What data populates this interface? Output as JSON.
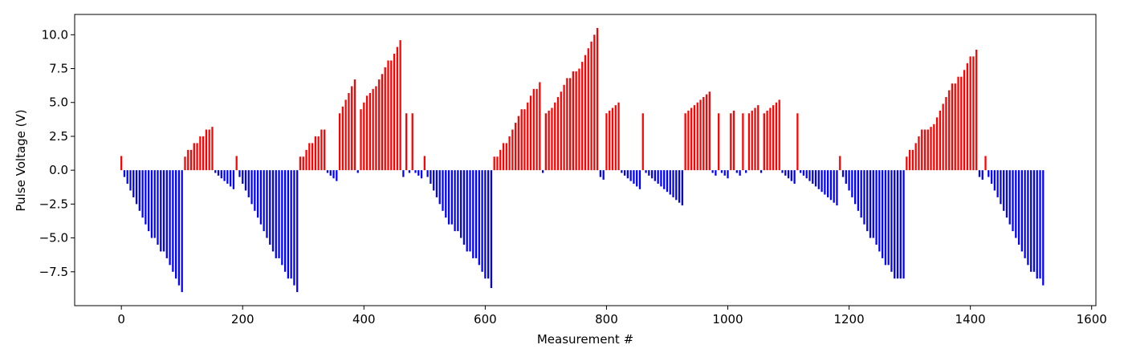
{
  "chart_data": {
    "type": "bar",
    "xlabel": "Measurement #",
    "ylabel": "Pulse Voltage (V)",
    "positive_color": "#ff0000",
    "negative_color": "#0000ff",
    "xlim": [
      -77,
      1607
    ],
    "ylim": [
      -10.0,
      11.5
    ],
    "xticks": [
      0,
      200,
      400,
      600,
      800,
      1000,
      1200,
      1400,
      1600
    ],
    "yticks": [
      {
        "value": -7.5,
        "label": "−7.5"
      },
      {
        "value": -5.0,
        "label": "−5.0"
      },
      {
        "value": -2.5,
        "label": "−2.5"
      },
      {
        "value": 0.0,
        "label": "0.0"
      },
      {
        "value": 2.5,
        "label": "2.5"
      },
      {
        "value": 5.0,
        "label": "5.0"
      },
      {
        "value": 7.5,
        "label": "7.5"
      },
      {
        "value": 10.0,
        "label": "10.0"
      }
    ],
    "x": [
      0,
      5,
      10,
      15,
      20,
      25,
      30,
      35,
      40,
      45,
      50,
      55,
      60,
      65,
      70,
      75,
      80,
      85,
      90,
      95,
      100,
      105,
      110,
      115,
      120,
      125,
      130,
      135,
      140,
      145,
      150,
      155,
      160,
      165,
      170,
      175,
      180,
      185,
      190,
      195,
      200,
      205,
      210,
      215,
      220,
      225,
      230,
      235,
      240,
      245,
      250,
      255,
      260,
      265,
      270,
      275,
      280,
      285,
      290,
      295,
      300,
      305,
      310,
      315,
      320,
      325,
      330,
      335,
      340,
      345,
      350,
      355,
      360,
      365,
      370,
      375,
      380,
      385,
      390,
      395,
      400,
      405,
      410,
      415,
      420,
      425,
      430,
      435,
      440,
      445,
      450,
      455,
      460,
      465,
      470,
      475,
      480,
      485,
      490,
      495,
      500,
      505,
      510,
      515,
      520,
      525,
      530,
      535,
      540,
      545,
      550,
      555,
      560,
      565,
      570,
      575,
      580,
      585,
      590,
      595,
      600,
      605,
      610,
      615,
      620,
      625,
      630,
      635,
      640,
      645,
      650,
      655,
      660,
      665,
      670,
      675,
      680,
      685,
      690,
      695,
      700,
      705,
      710,
      715,
      720,
      725,
      730,
      735,
      740,
      745,
      750,
      755,
      760,
      765,
      770,
      775,
      780,
      785,
      790,
      795,
      800,
      805,
      810,
      815,
      820,
      825,
      830,
      835,
      840,
      845,
      850,
      855,
      860,
      865,
      870,
      875,
      880,
      885,
      890,
      895,
      900,
      905,
      910,
      915,
      920,
      925,
      930,
      935,
      940,
      945,
      950,
      955,
      960,
      965,
      970,
      975,
      980,
      985,
      990,
      995,
      1000,
      1005,
      1010,
      1015,
      1020,
      1025,
      1030,
      1035,
      1040,
      1045,
      1050,
      1055,
      1060,
      1065,
      1070,
      1075,
      1080,
      1085,
      1090,
      1095,
      1100,
      1105,
      1110,
      1115,
      1120,
      1125,
      1130,
      1135,
      1140,
      1145,
      1150,
      1155,
      1160,
      1165,
      1170,
      1175,
      1180,
      1185,
      1190,
      1195,
      1200,
      1205,
      1210,
      1215,
      1220,
      1225,
      1230,
      1235,
      1240,
      1245,
      1250,
      1255,
      1260,
      1265,
      1270,
      1275,
      1280,
      1285,
      1290,
      1295,
      1300,
      1305,
      1310,
      1315,
      1320,
      1325,
      1330,
      1335,
      1340,
      1345,
      1350,
      1355,
      1360,
      1365,
      1370,
      1375,
      1380,
      1385,
      1390,
      1395,
      1400,
      1405,
      1410,
      1415,
      1420,
      1425,
      1430,
      1435,
      1440,
      1445,
      1450,
      1455,
      1460,
      1465,
      1470,
      1475,
      1480,
      1485,
      1490,
      1495,
      1500,
      1505,
      1510,
      1515,
      1520
    ],
    "values": [
      1.05,
      -0.5,
      -1,
      -1.5,
      -2,
      -2.5,
      -3,
      -3.5,
      -4,
      -4.5,
      -5,
      -5,
      -5.5,
      -6,
      -6,
      -6.5,
      -7,
      -7.5,
      -8,
      -8.5,
      -9,
      1,
      1.5,
      1.5,
      2,
      2,
      2.5,
      2.5,
      3,
      3,
      3.2,
      -0.2,
      -0.4,
      -0.6,
      -0.8,
      -1,
      -1.2,
      -1.4,
      1.05,
      -0.5,
      -1,
      -1.5,
      -2,
      -2.5,
      -3,
      -3.5,
      -4,
      -4.5,
      -5,
      -5.5,
      -6,
      -6.5,
      -6.5,
      -7,
      -7.5,
      -8,
      -8,
      -8.5,
      -9,
      1,
      1,
      1.5,
      2,
      2,
      2.5,
      2.5,
      3,
      3,
      -0.2,
      -0.4,
      -0.6,
      -0.8,
      4.2,
      4.7,
      5.2,
      5.7,
      6.2,
      6.7,
      -0.2,
      4.5,
      5,
      5.5,
      5.7,
      6,
      6.2,
      6.7,
      7.1,
      7.6,
      8.1,
      8.1,
      8.6,
      9.1,
      9.6,
      -0.5,
      4.2,
      -0.2,
      4.2,
      -0.2,
      -0.4,
      -0.6,
      1.05,
      -0.5,
      -1,
      -1.5,
      -2,
      -2.5,
      -3,
      -3.5,
      -4,
      -4,
      -4.5,
      -4.5,
      -5,
      -5.5,
      -6,
      -6,
      -6.5,
      -6.5,
      -7,
      -7.5,
      -8,
      -8,
      -8.7,
      1,
      1,
      1.5,
      2,
      2,
      2.5,
      3,
      3.5,
      4,
      4.5,
      4.5,
      5,
      5.5,
      6,
      6,
      6.5,
      -0.2,
      4.2,
      4.4,
      4.6,
      5,
      5.4,
      5.8,
      6.3,
      6.8,
      6.8,
      7.3,
      7.3,
      7.5,
      8,
      8.5,
      9,
      9.5,
      10,
      10.5,
      -0.5,
      -0.7,
      4.2,
      4.4,
      4.6,
      4.8,
      5,
      -0.2,
      -0.4,
      -0.6,
      -0.8,
      -1,
      -1.2,
      -1.4,
      4.2,
      -0.2,
      -0.4,
      -0.6,
      -0.8,
      -1,
      -1.2,
      -1.4,
      -1.6,
      -1.8,
      -2,
      -2.2,
      -2.4,
      -2.6,
      4.2,
      4.4,
      4.6,
      4.8,
      5,
      5.2,
      5.4,
      5.6,
      5.8,
      -0.2,
      -0.4,
      4.2,
      -0.2,
      -0.4,
      -0.6,
      4.2,
      4.4,
      -0.2,
      -0.4,
      4.2,
      -0.2,
      4.2,
      4.4,
      4.6,
      4.8,
      -0.2,
      4.2,
      4.4,
      4.6,
      4.8,
      5,
      5.2,
      -0.2,
      -0.4,
      -0.6,
      -0.8,
      -1,
      4.2,
      -0.2,
      -0.4,
      -0.6,
      -0.8,
      -1,
      -1.2,
      -1.4,
      -1.6,
      -1.8,
      -2,
      -2.2,
      -2.4,
      -2.6,
      1.05,
      -0.5,
      -1,
      -1.5,
      -2,
      -2.5,
      -3,
      -3.5,
      -4,
      -4.5,
      -5,
      -5,
      -5.5,
      -6,
      -6.5,
      -7,
      -7,
      -7.5,
      -8,
      -8,
      -8,
      -8,
      1,
      1.5,
      1.5,
      2,
      2.5,
      3,
      3,
      3,
      3.2,
      3.4,
      3.9,
      4.4,
      4.9,
      5.4,
      5.9,
      6.4,
      6.4,
      6.9,
      6.9,
      7.4,
      7.9,
      8.4,
      8.4,
      8.9,
      -0.5,
      -0.7,
      1.05,
      -0.5,
      -1,
      -1.5,
      -2,
      -2.5,
      -3,
      -3.5,
      -4,
      -4.5,
      -5,
      -5.5,
      -6,
      -6.5,
      -7,
      -7.5,
      -7.5,
      -8,
      -8,
      -8.5
    ]
  }
}
